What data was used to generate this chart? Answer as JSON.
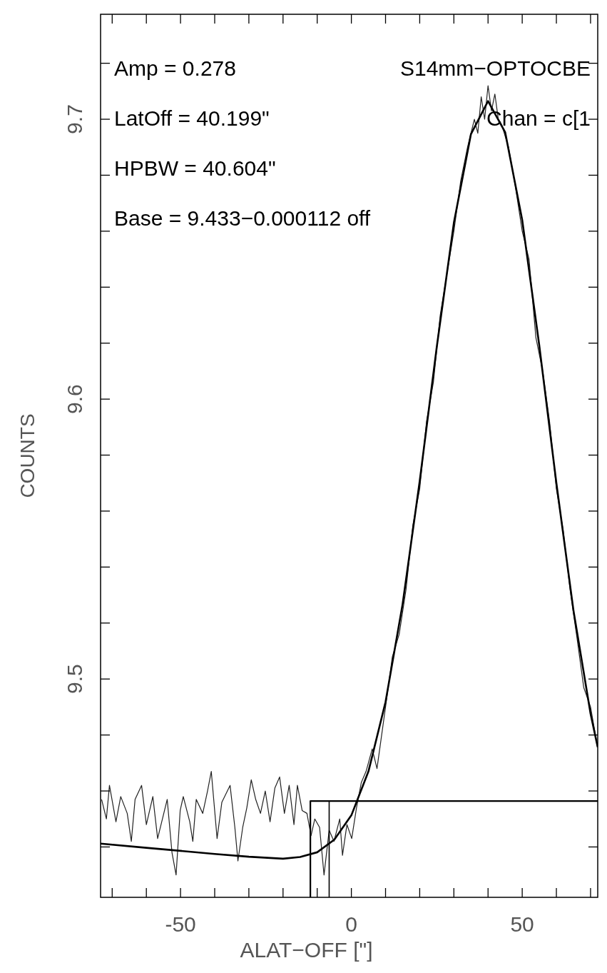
{
  "chart_data": {
    "type": "line",
    "xlabel": "ALAT−OFF [\"]",
    "ylabel": "COUNTS",
    "annotations": [
      "Amp = 0.278",
      "LatOff = 40.199\"",
      "HPBW = 40.604\"",
      "Base = 9.433−0.000112 off",
      "S14mm−OPTOCBE",
      "Chan = c[1"
    ],
    "xlim": [
      -73.4,
      72.1
    ],
    "ylim": [
      9.422,
      9.7375
    ],
    "xticks": [
      {
        "value": -70,
        "label": null
      },
      {
        "value": -60,
        "label": null
      },
      -50,
      {
        "value": -40,
        "label": null
      },
      {
        "value": -30,
        "label": null
      },
      {
        "value": -20,
        "label": null
      },
      {
        "value": -10,
        "label": null
      },
      0,
      {
        "value": 10,
        "label": null
      },
      {
        "value": 20,
        "label": null
      },
      {
        "value": 30,
        "label": null
      },
      {
        "value": 40,
        "label": null
      },
      50,
      {
        "value": 60,
        "label": null
      },
      {
        "value": 70,
        "label": null
      }
    ],
    "yticks": [
      {
        "value": 9.44,
        "label": null
      },
      {
        "value": 9.46,
        "label": null
      },
      {
        "value": 9.48,
        "label": null
      },
      9.5,
      {
        "value": 9.52,
        "label": null
      },
      {
        "value": 9.54,
        "label": null
      },
      {
        "value": 9.56,
        "label": null
      },
      {
        "value": 9.58,
        "label": null
      },
      9.6,
      {
        "value": 9.62,
        "label": null
      },
      {
        "value": 9.64,
        "label": null
      },
      {
        "value": 9.66,
        "label": null
      },
      {
        "value": 9.68,
        "label": null
      },
      9.7,
      {
        "value": 9.72,
        "label": null
      }
    ],
    "series": [
      {
        "color": "#222222",
        "x": [
          -73.1,
          -71.7,
          -70.8,
          -68.9,
          -67.5,
          -65.6,
          -64.4,
          -63.3,
          -61.4,
          -60.0,
          -58.1,
          -56.7,
          -53.9,
          -52.5,
          -51.3,
          -50.1,
          -49.2,
          -47.3,
          -46.4,
          -45.4,
          -43.5,
          -42.1,
          -41.0,
          -39.3,
          -37.9,
          -35.5,
          -34.1,
          -33.2,
          -31.8,
          -30.6,
          -29.3,
          -28.0,
          -26.6,
          -25.2,
          -23.8,
          -22.4,
          -21.0,
          -19.6,
          -18.2,
          -16.8,
          -15.8,
          -14.4,
          -13.0,
          -11.8,
          -10.7,
          -9.3,
          -8.0,
          -6.5,
          -5.1,
          -3.4,
          -2.6,
          -1.3,
          0.1,
          1.5,
          2.9,
          4.3,
          6.1,
          7.5,
          10,
          12,
          14,
          16,
          18,
          20,
          22,
          24,
          26,
          28,
          30,
          32,
          34,
          36,
          37,
          38,
          39,
          40,
          41,
          42,
          43,
          44,
          46,
          48,
          50,
          52,
          54,
          56,
          58,
          60,
          62,
          64,
          66,
          68,
          70,
          72
        ],
        "values": [
          9.457,
          9.45,
          9.462,
          9.449,
          9.458,
          9.452,
          9.442,
          9.457,
          9.462,
          9.448,
          9.458,
          9.443,
          9.457,
          9.438,
          9.43,
          9.453,
          9.458,
          9.449,
          9.442,
          9.457,
          9.452,
          9.46,
          9.467,
          9.443,
          9.456,
          9.462,
          9.447,
          9.435,
          9.447,
          9.454,
          9.464,
          9.457,
          9.452,
          9.46,
          9.449,
          9.461,
          9.465,
          9.452,
          9.462,
          9.448,
          9.462,
          9.453,
          9.452,
          9.444,
          9.45,
          9.447,
          9.43,
          9.446,
          9.442,
          9.45,
          9.437,
          9.448,
          9.443,
          9.454,
          9.463,
          9.467,
          9.475,
          9.468,
          9.49,
          9.508,
          9.516,
          9.532,
          9.555,
          9.568,
          9.592,
          9.606,
          9.63,
          9.645,
          9.66,
          9.678,
          9.69,
          9.7,
          9.695,
          9.708,
          9.7,
          9.712,
          9.703,
          9.709,
          9.7,
          9.698,
          9.69,
          9.676,
          9.66,
          9.65,
          9.622,
          9.61,
          9.592,
          9.568,
          9.553,
          9.532,
          9.515,
          9.497,
          9.49,
          9.476
        ]
      },
      {
        "color": "#000000",
        "x": [
          -73.4,
          -60,
          -50,
          -40,
          -30,
          -20,
          -15,
          -10,
          -5,
          0,
          5,
          10,
          15,
          20,
          25,
          30,
          35,
          40,
          45,
          50,
          55,
          60,
          65,
          70,
          72.1
        ],
        "values": [
          9.4412,
          9.4397,
          9.4386,
          9.4375,
          9.4365,
          9.4358,
          9.4364,
          9.4381,
          9.4426,
          9.4513,
          9.467,
          9.4918,
          9.5268,
          9.5707,
          9.6187,
          9.663,
          9.6947,
          9.7065,
          9.6954,
          9.664,
          9.6191,
          9.57,
          9.5245,
          9.4876,
          9.4756
        ]
      },
      {
        "color": "#000000",
        "x": [
          -12,
          -12,
          72.1
        ],
        "values": [
          9.422,
          9.4564,
          9.4564
        ]
      },
      {
        "color": "#000000",
        "x": [
          -6.5,
          -6.5
        ],
        "values": [
          9.422,
          9.4564
        ]
      }
    ]
  }
}
